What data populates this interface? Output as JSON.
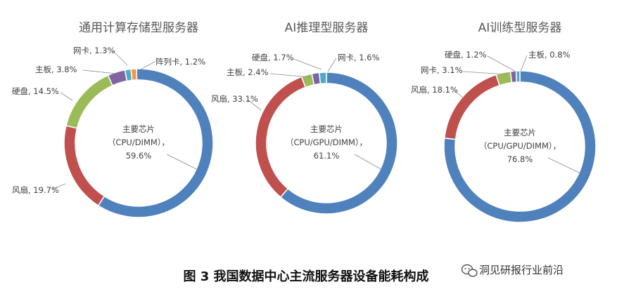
{
  "figure": {
    "caption": "图 3  我国数据中心主流服务器设备能耗构成",
    "source_mark": "洞见研报行业前沿"
  },
  "chart_data": [
    {
      "type": "pie",
      "title": "通用计算存储型服务器",
      "center_label": [
        "主要芯片",
        "（CPU/DIMM），",
        "59.6%"
      ],
      "slices": [
        {
          "name": "主要芯片（CPU/DIMM）",
          "value": 59.6,
          "label": "",
          "color": "#4f81bd"
        },
        {
          "name": "风扇",
          "value": 19.7,
          "label": "风扇, 19.7%",
          "color": "#c0504d"
        },
        {
          "name": "硬盘",
          "value": 14.5,
          "label": "硬盘, 14.5%",
          "color": "#9bbb59"
        },
        {
          "name": "主板",
          "value": 3.8,
          "label": "主板, 3.8%",
          "color": "#8064a2"
        },
        {
          "name": "网卡",
          "value": 1.3,
          "label": "网卡, 1.3%",
          "color": "#4bacc6"
        },
        {
          "name": "阵列卡",
          "value": 1.2,
          "label": "阵列卡, 1.2%",
          "color": "#f79646"
        }
      ]
    },
    {
      "type": "pie",
      "title": "AI推理型服务器",
      "center_label": [
        "主要芯片",
        "（CPU/GPU/DIMM），",
        "61.1%"
      ],
      "slices": [
        {
          "name": "主要芯片（CPU/GPU/DIMM）",
          "value": 61.1,
          "label": "",
          "color": "#4f81bd"
        },
        {
          "name": "风扇",
          "value": 33.1,
          "label": "风扇, 33.1%",
          "color": "#c0504d"
        },
        {
          "name": "主板",
          "value": 2.4,
          "label": "主板, 2.4%",
          "color": "#9bbb59"
        },
        {
          "name": "硬盘",
          "value": 1.7,
          "label": "硬盘, 1.7%",
          "color": "#8064a2"
        },
        {
          "name": "网卡",
          "value": 1.6,
          "label": "网卡, 1.6%",
          "color": "#4bacc6"
        }
      ]
    },
    {
      "type": "pie",
      "title": "AI训练型服务器",
      "center_label": [
        "主要芯片",
        "（CPU/GPU/DIMM），",
        "76.8%"
      ],
      "slices": [
        {
          "name": "主要芯片（CPU/GPU/DIMM）",
          "value": 76.8,
          "label": "",
          "color": "#4f81bd"
        },
        {
          "name": "风扇",
          "value": 18.1,
          "label": "风扇, 18.1%",
          "color": "#c0504d"
        },
        {
          "name": "网卡",
          "value": 3.1,
          "label": "网卡, 3.1%",
          "color": "#9bbb59"
        },
        {
          "name": "硬盘",
          "value": 1.2,
          "label": "硬盘, 1.2%",
          "color": "#8064a2"
        },
        {
          "name": "主板",
          "value": 0.8,
          "label": "主板, 0.8%",
          "color": "#4bacc6"
        }
      ]
    }
  ]
}
